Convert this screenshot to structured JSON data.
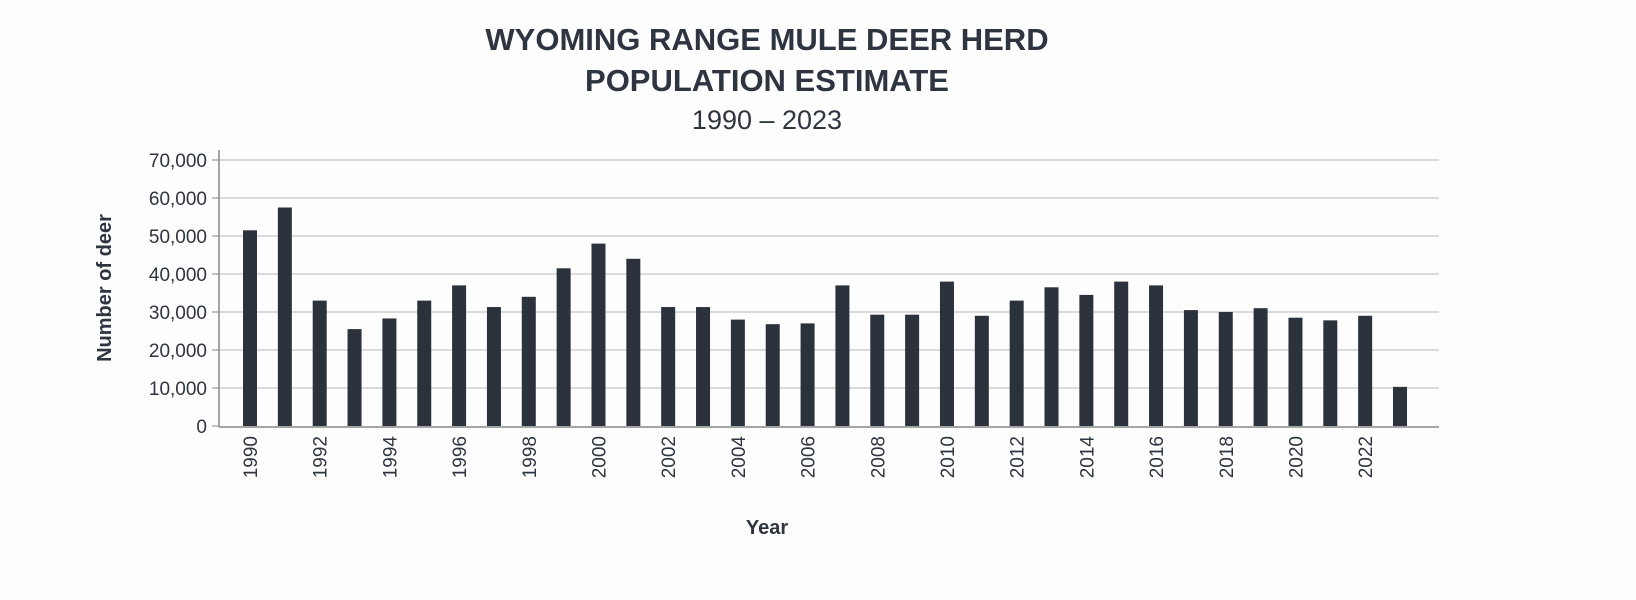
{
  "chart_data": {
    "type": "bar",
    "title": [
      "WYOMING RANGE MULE DEER HERD",
      "POPULATION ESTIMATE"
    ],
    "subtitle": "1990 – 2023",
    "xlabel": "Year",
    "ylabel": "Number of deer",
    "ylim": [
      0,
      70000
    ],
    "yticks": [
      0,
      10000,
      20000,
      30000,
      40000,
      50000,
      60000,
      70000
    ],
    "ytick_labels": [
      "0",
      "10,000",
      "20,000",
      "30,000",
      "40,000",
      "50,000",
      "60,000",
      "70,000"
    ],
    "grid": true,
    "bar_color": "#2b323c",
    "categories": [
      1990,
      1991,
      1992,
      1993,
      1994,
      1995,
      1996,
      1997,
      1998,
      1999,
      2000,
      2001,
      2002,
      2003,
      2004,
      2005,
      2006,
      2007,
      2008,
      2009,
      2010,
      2011,
      2012,
      2013,
      2014,
      2015,
      2016,
      2017,
      2018,
      2019,
      2020,
      2021,
      2022,
      2023
    ],
    "xtick_labels": [
      "1990",
      "1992",
      "1994",
      "1996",
      "1998",
      "2000",
      "2002",
      "2004",
      "2006",
      "2008",
      "2010",
      "2012",
      "2014",
      "2016",
      "2018",
      "2020",
      "2022"
    ],
    "values": [
      51500,
      57500,
      33000,
      25500,
      28300,
      33000,
      37000,
      31300,
      34000,
      41500,
      48000,
      44000,
      31300,
      31300,
      28000,
      26800,
      27000,
      37000,
      29300,
      29300,
      38000,
      29000,
      33000,
      36500,
      34500,
      38000,
      37000,
      30500,
      30000,
      31000,
      28500,
      27800,
      29000,
      10300
    ]
  }
}
